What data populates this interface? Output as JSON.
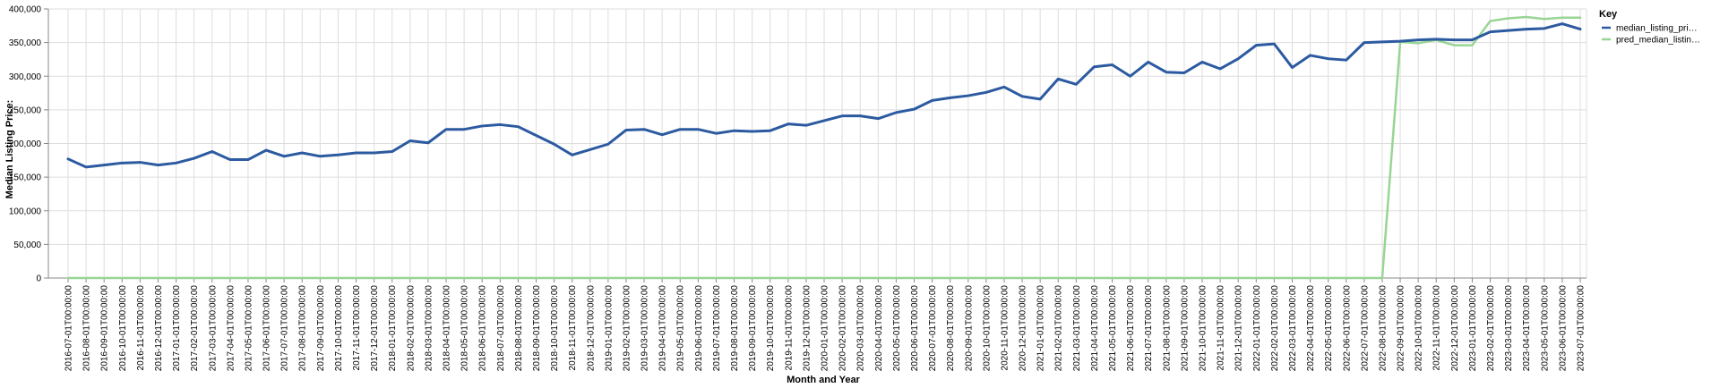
{
  "chart_data": {
    "type": "line",
    "title": "",
    "xlabel": "Month and Year",
    "ylabel": "Median Listing Price:",
    "ylim": [
      0,
      400000
    ],
    "yticks": [
      0,
      50000,
      100000,
      150000,
      200000,
      250000,
      300000,
      350000,
      400000
    ],
    "ytick_labels": [
      "0",
      "50,000",
      "100,000",
      "150,000",
      "200,000",
      "250,000",
      "300,000",
      "350,000",
      "400,000"
    ],
    "grid": true,
    "legend": {
      "title": "Key",
      "placement": "right",
      "entries": [
        {
          "label": "median_listing_pri…",
          "color": "#2c5aa0"
        },
        {
          "label": "pred_median_listin…",
          "color": "#98d594"
        }
      ]
    },
    "x": [
      "2016-07-01T00:00:00",
      "2016-08-01T00:00:00",
      "2016-09-01T00:00:00",
      "2016-10-01T00:00:00",
      "2016-11-01T00:00:00",
      "2016-12-01T00:00:00",
      "2017-01-01T00:00:00",
      "2017-02-01T00:00:00",
      "2017-03-01T00:00:00",
      "2017-04-01T00:00:00",
      "2017-05-01T00:00:00",
      "2017-06-01T00:00:00",
      "2017-07-01T00:00:00",
      "2017-08-01T00:00:00",
      "2017-09-01T00:00:00",
      "2017-10-01T00:00:00",
      "2017-11-01T00:00:00",
      "2017-12-01T00:00:00",
      "2018-01-01T00:00:00",
      "2018-02-01T00:00:00",
      "2018-03-01T00:00:00",
      "2018-04-01T00:00:00",
      "2018-05-01T00:00:00",
      "2018-06-01T00:00:00",
      "2018-07-01T00:00:00",
      "2018-08-01T00:00:00",
      "2018-09-01T00:00:00",
      "2018-10-01T00:00:00",
      "2018-11-01T00:00:00",
      "2018-12-01T00:00:00",
      "2019-01-01T00:00:00",
      "2019-02-01T00:00:00",
      "2019-03-01T00:00:00",
      "2019-04-01T00:00:00",
      "2019-05-01T00:00:00",
      "2019-06-01T00:00:00",
      "2019-07-01T00:00:00",
      "2019-08-01T00:00:00",
      "2019-09-01T00:00:00",
      "2019-10-01T00:00:00",
      "2019-11-01T00:00:00",
      "2019-12-01T00:00:00",
      "2020-01-01T00:00:00",
      "2020-02-01T00:00:00",
      "2020-03-01T00:00:00",
      "2020-04-01T00:00:00",
      "2020-05-01T00:00:00",
      "2020-06-01T00:00:00",
      "2020-07-01T00:00:00",
      "2020-08-01T00:00:00",
      "2020-09-01T00:00:00",
      "2020-10-01T00:00:00",
      "2020-11-01T00:00:00",
      "2020-12-01T00:00:00",
      "2021-01-01T00:00:00",
      "2021-02-01T00:00:00",
      "2021-03-01T00:00:00",
      "2021-04-01T00:00:00",
      "2021-05-01T00:00:00",
      "2021-06-01T00:00:00",
      "2021-07-01T00:00:00",
      "2021-08-01T00:00:00",
      "2021-09-01T00:00:00",
      "2021-10-01T00:00:00",
      "2021-11-01T00:00:00",
      "2021-12-01T00:00:00",
      "2022-01-01T00:00:00",
      "2022-02-01T00:00:00",
      "2022-03-01T00:00:00",
      "2022-04-01T00:00:00",
      "2022-05-01T00:00:00",
      "2022-06-01T00:00:00",
      "2022-07-01T00:00:00",
      "2022-08-01T00:00:00",
      "2022-09-01T00:00:00",
      "2022-10-01T00:00:00",
      "2022-11-01T00:00:00",
      "2022-12-01T00:00:00",
      "2023-01-01T00:00:00",
      "2023-02-01T00:00:00",
      "2023-03-01T00:00:00",
      "2023-04-01T00:00:00",
      "2023-05-01T00:00:00",
      "2023-06-01T00:00:00",
      "2023-07-01T00:00:00"
    ],
    "series": [
      {
        "name": "median_listing_pri…",
        "color": "#2c5aa0",
        "values": [
          177000,
          165000,
          168000,
          171000,
          172000,
          168000,
          171000,
          178000,
          188000,
          176000,
          176000,
          190000,
          181000,
          186000,
          181000,
          183000,
          186000,
          186000,
          188000,
          204000,
          201000,
          221000,
          221000,
          226000,
          228000,
          225000,
          212000,
          199000,
          183000,
          191000,
          199000,
          220000,
          221000,
          213000,
          221000,
          221000,
          215000,
          219000,
          218000,
          219000,
          229000,
          227000,
          234000,
          241000,
          241000,
          237000,
          246000,
          251000,
          264000,
          268000,
          271000,
          276000,
          284000,
          270000,
          266000,
          296000,
          288000,
          314000,
          317000,
          300000,
          321000,
          306000,
          305000,
          321000,
          311000,
          326000,
          346000,
          348000,
          313000,
          331000,
          326000,
          324000,
          350000,
          351000,
          352000,
          354000,
          355000,
          354000,
          354000,
          366000,
          368000,
          370000,
          371000,
          378000,
          370000
        ]
      },
      {
        "name": "pred_median_listin…",
        "color": "#98d594",
        "values": [
          0,
          0,
          0,
          0,
          0,
          0,
          0,
          0,
          0,
          0,
          0,
          0,
          0,
          0,
          0,
          0,
          0,
          0,
          0,
          0,
          0,
          0,
          0,
          0,
          0,
          0,
          0,
          0,
          0,
          0,
          0,
          0,
          0,
          0,
          0,
          0,
          0,
          0,
          0,
          0,
          0,
          0,
          0,
          0,
          0,
          0,
          0,
          0,
          0,
          0,
          0,
          0,
          0,
          0,
          0,
          0,
          0,
          0,
          0,
          0,
          0,
          0,
          0,
          0,
          0,
          0,
          0,
          0,
          0,
          0,
          0,
          0,
          0,
          0,
          351000,
          349000,
          354000,
          346000,
          346000,
          382000,
          386000,
          388000,
          385000,
          387000,
          387000
        ]
      }
    ]
  }
}
